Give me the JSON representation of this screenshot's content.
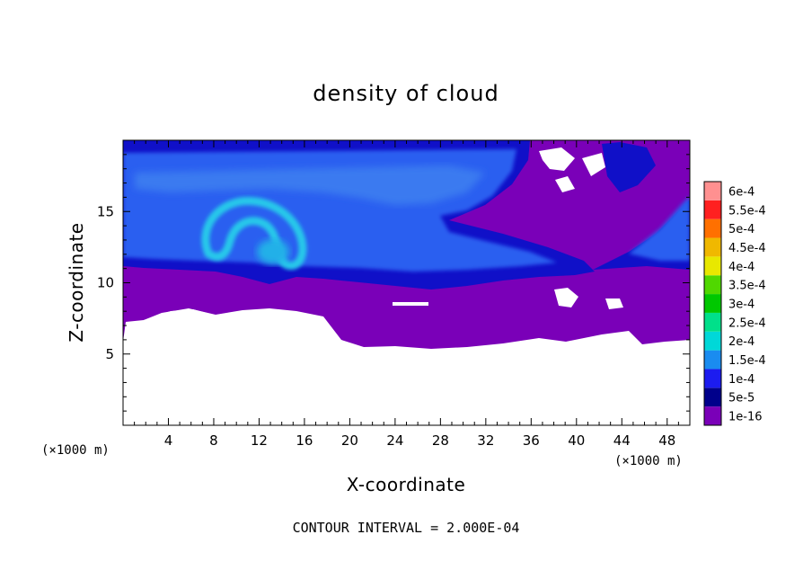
{
  "chart_data": {
    "type": "heatmap",
    "title": "density of cloud",
    "xlabel": "X-coordinate",
    "ylabel": "Z-coordinate",
    "x_unit_label": "(×1000 m)",
    "x_unit_label_right": "(×1000 m)",
    "footer": "CONTOUR INTERVAL = 2.000E-04",
    "xlim": [
      0,
      50
    ],
    "ylim": [
      0,
      20
    ],
    "x_ticks": [
      4,
      8,
      12,
      16,
      20,
      24,
      28,
      32,
      36,
      40,
      44,
      48
    ],
    "y_ticks": [
      5,
      10,
      15
    ],
    "colorbar": {
      "levels": [
        "1e-16",
        "5e-5",
        "1e-4",
        "1.5e-4",
        "2e-4",
        "2.5e-4",
        "3e-4",
        "3.5e-4",
        "4e-4",
        "4.5e-4",
        "5e-4",
        "5.5e-4",
        "6e-4"
      ],
      "colors": [
        "#7a00b8",
        "#00008b",
        "#1c1cf0",
        "#1a8cf0",
        "#00d8d8",
        "#00e08a",
        "#00c800",
        "#50d800",
        "#e8e800",
        "#f0b800",
        "#ff7000",
        "#ff2020",
        "#ff9090"
      ]
    },
    "regions": [
      {
        "name": "background",
        "level": "1e-16",
        "color": "#7a00b8"
      },
      {
        "name": "upper-cloud-layer",
        "level": "5e-5",
        "color": "#1c1cf0"
      },
      {
        "name": "cloud-core",
        "level": "1e-4",
        "color": "#2a6af0"
      },
      {
        "name": "cloud-vortex",
        "level": "1.5e-4",
        "color": "#20b8e8"
      }
    ],
    "grid": false,
    "legend": "colorbar-right"
  }
}
